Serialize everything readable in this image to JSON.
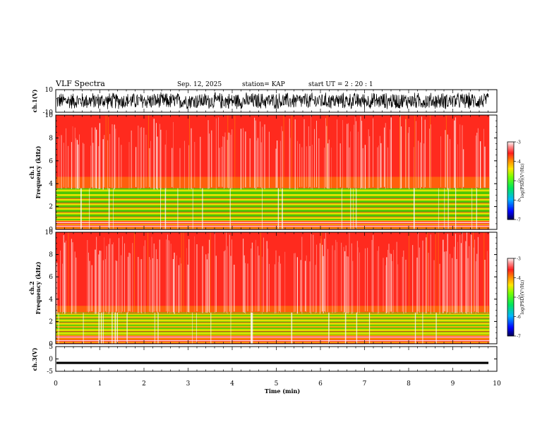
{
  "header": {
    "title": "VLF Spectra",
    "date": "Sep. 12, 2025",
    "station": "station= KAP",
    "start": "start UT =  2 : 20 : 1"
  },
  "colors": {
    "spectrogram_bg": "#ff2a1e",
    "speckle": "#ffffff",
    "yellow": "#f5e400",
    "green": "#2ee000",
    "orange": "#ff8a00",
    "line": "#000000"
  },
  "chart_data": [
    {
      "type": "line",
      "name": "ch1-waveform",
      "ylabel": "ch.1(V)",
      "ylim": [
        -10,
        10
      ],
      "yticks": [
        {
          "value": 10,
          "label": "10"
        },
        {
          "value": -10,
          "label": "-10"
        }
      ],
      "xlim": [
        0,
        10
      ],
      "xlabel": "",
      "description_values": {
        "typical_min": -8,
        "typical_max": 8
      }
    },
    {
      "type": "heatmap",
      "name": "ch1-spectrogram",
      "ylabel_line1": "ch.1",
      "ylabel_line2": "Frequency (kHz)",
      "ylim": [
        0,
        10
      ],
      "yticks": [
        {
          "value": 0,
          "label": "0"
        },
        {
          "value": 2,
          "label": "2"
        },
        {
          "value": 4,
          "label": "4"
        },
        {
          "value": 6,
          "label": "6"
        },
        {
          "value": 8,
          "label": "8"
        },
        {
          "value": 10,
          "label": "10"
        }
      ],
      "xlim": [
        0,
        9.83
      ],
      "bands": {
        "green_low_khz": 0.8,
        "green_high_khz": 3.6,
        "yellow_high_khz": 4.6
      },
      "colorbar": {
        "label": "log(PSD)(V²/Hz)",
        "range": [
          -7,
          -3
        ],
        "ticks": [
          {
            "value": -3,
            "label": "-3"
          },
          {
            "value": -4,
            "label": "-4"
          },
          {
            "value": -5,
            "label": "-5"
          },
          {
            "value": -6,
            "label": "-6"
          },
          {
            "value": -7,
            "label": "-7"
          }
        ]
      }
    },
    {
      "type": "heatmap",
      "name": "ch2-spectrogram",
      "ylabel_line1": "ch.2",
      "ylabel_line2": "Frequency (kHz)",
      "ylim": [
        0,
        10
      ],
      "yticks": [
        {
          "value": 0,
          "label": "0"
        },
        {
          "value": 2,
          "label": "2"
        },
        {
          "value": 4,
          "label": "4"
        },
        {
          "value": 6,
          "label": "6"
        },
        {
          "value": 8,
          "label": "8"
        },
        {
          "value": 10,
          "label": "10"
        }
      ],
      "xlim": [
        0,
        9.83
      ],
      "bands": {
        "green_low_khz": 0.8,
        "green_high_khz": 2.8,
        "yellow_high_khz": 3.4
      },
      "colorbar": {
        "label": "log(PSD)(V²/Hz)",
        "range": [
          -7,
          -3
        ],
        "ticks": [
          {
            "value": -3,
            "label": "-3"
          },
          {
            "value": -4,
            "label": "-4"
          },
          {
            "value": -5,
            "label": "-5"
          },
          {
            "value": -6,
            "label": "-6"
          },
          {
            "value": -7,
            "label": "-7"
          }
        ]
      }
    },
    {
      "type": "line",
      "name": "ch3-waveform",
      "ylabel": "ch.3(V)",
      "ylim": [
        -5,
        5
      ],
      "yticks": [
        {
          "value": 5,
          "label": "5"
        },
        {
          "value": 0,
          "label": "0"
        },
        {
          "value": -5,
          "label": "-5"
        }
      ],
      "xlim": [
        0,
        10
      ],
      "description_values": {
        "center": -1.6,
        "amplitude": 0.45
      }
    }
  ],
  "xaxis": {
    "label": "Time (min)",
    "ticks": [
      {
        "value": 0,
        "label": "0"
      },
      {
        "value": 1,
        "label": "1"
      },
      {
        "value": 2,
        "label": "2"
      },
      {
        "value": 3,
        "label": "3"
      },
      {
        "value": 4,
        "label": "4"
      },
      {
        "value": 5,
        "label": "5"
      },
      {
        "value": 6,
        "label": "6"
      },
      {
        "value": 7,
        "label": "7"
      },
      {
        "value": 8,
        "label": "8"
      },
      {
        "value": 9,
        "label": "9"
      },
      {
        "value": 10,
        "label": "10"
      }
    ]
  }
}
